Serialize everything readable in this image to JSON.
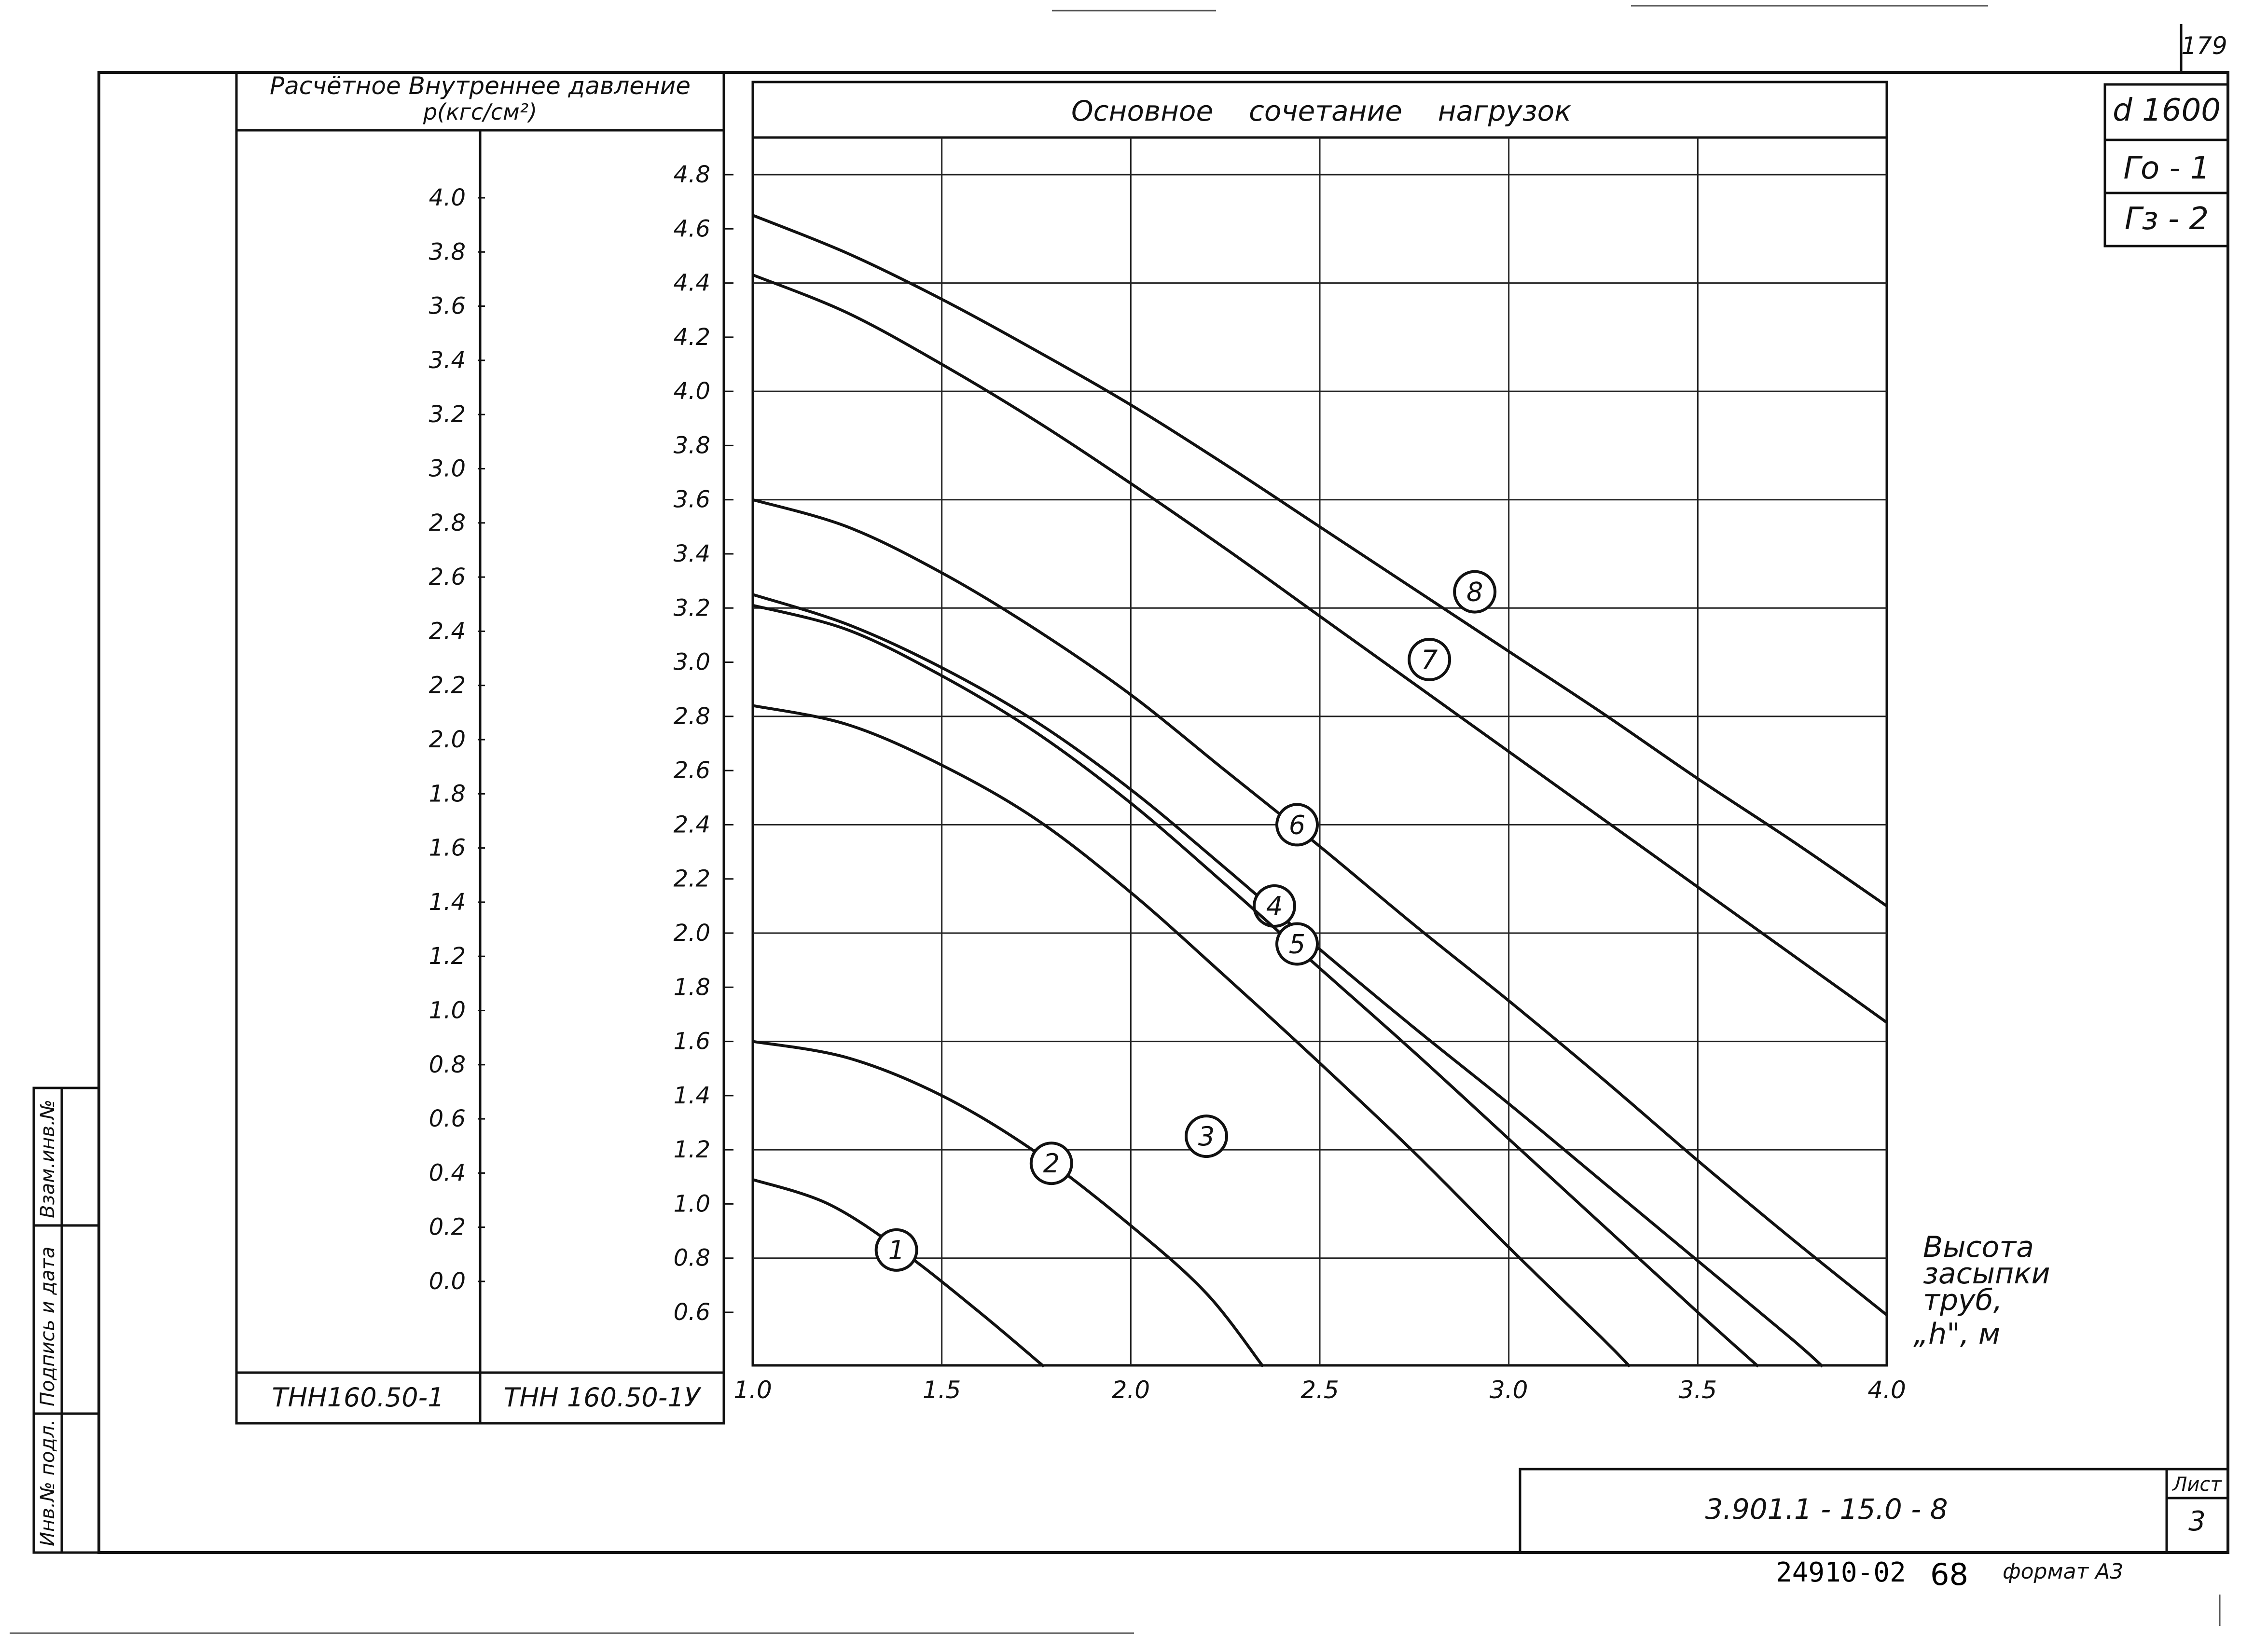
{
  "page_number": "179",
  "stamps": {
    "diameter": "d 1600",
    "g0": "Γo - 1",
    "g3": "Γз - 2"
  },
  "left_panel": {
    "header_line1": "Расчётное  Внутреннее  давление",
    "header_line2": "p(кгс/см²)",
    "col1_footer": "ТНН160.50-1",
    "col2_footer": "ТНН 160.50-1У",
    "col1_ticks": [
      "4.0",
      "3.8",
      "3.6",
      "3.4",
      "3.2",
      "3.0",
      "2.8",
      "2.6",
      "2.4",
      "2.2",
      "2.0",
      "1.8",
      "1.6",
      "1.4",
      "1.2",
      "1.0",
      "0.8",
      "0.6",
      "0.4",
      "0.2",
      "0.0"
    ],
    "col2_ticks": [
      "4.8",
      "4.6",
      "4.4",
      "4.2",
      "4.0",
      "3.8",
      "3.6",
      "3.4",
      "3.2",
      "3.0",
      "2.8",
      "2.6",
      "2.4",
      "2.2",
      "2.0",
      "1.8",
      "1.6",
      "1.4",
      "1.2",
      "1.0",
      "0.8",
      "0.6"
    ]
  },
  "side_labels": {
    "a": "Взам.инв.№",
    "b": "Подпись и дата",
    "c": "Инв.№ подл."
  },
  "title_block": {
    "doc_code": "3.901.1 - 15.0 - 8",
    "sheet_label": "Лист",
    "sheet_number": "3"
  },
  "bottom_text": {
    "code": "24910-02",
    "num": "68",
    "format": "формат A3"
  },
  "chart_data": {
    "type": "line",
    "title": "Основное    сочетание    нагрузок",
    "xlabel_lines": [
      "Высота",
      "засыпки",
      "труб,",
      "„h\", м"
    ],
    "x_ticks": [
      "1.0",
      "1.5",
      "2.0",
      "2.5",
      "3.0",
      "3.5",
      "4.0"
    ],
    "xlim": [
      1.0,
      4.0
    ],
    "ylim": [
      0.4,
      4.9
    ],
    "grid": true,
    "series": [
      {
        "name": "1",
        "label_at": [
          1.38,
          0.83
        ],
        "points": [
          [
            1.0,
            1.09
          ],
          [
            1.2,
            1.0
          ],
          [
            1.4,
            0.82
          ],
          [
            1.6,
            0.6
          ],
          [
            1.77,
            0.4
          ]
        ]
      },
      {
        "name": "2",
        "label_at": [
          1.79,
          1.15
        ],
        "points": [
          [
            1.0,
            1.6
          ],
          [
            1.25,
            1.54
          ],
          [
            1.5,
            1.4
          ],
          [
            1.75,
            1.19
          ],
          [
            2.0,
            0.92
          ],
          [
            2.2,
            0.67
          ],
          [
            2.35,
            0.4
          ]
        ]
      },
      {
        "name": "3",
        "label_at": [
          2.2,
          1.25
        ],
        "points": [
          [
            1.0,
            2.84
          ],
          [
            1.25,
            2.77
          ],
          [
            1.5,
            2.62
          ],
          [
            1.75,
            2.42
          ],
          [
            2.0,
            2.15
          ],
          [
            2.25,
            1.84
          ],
          [
            2.5,
            1.52
          ],
          [
            2.75,
            1.19
          ],
          [
            3.0,
            0.84
          ],
          [
            3.25,
            0.5
          ],
          [
            3.32,
            0.4
          ]
        ]
      },
      {
        "name": "4",
        "label_at": [
          2.38,
          2.1
        ],
        "points": [
          [
            1.0,
            3.25
          ],
          [
            1.25,
            3.14
          ],
          [
            1.5,
            2.98
          ],
          [
            1.75,
            2.78
          ],
          [
            2.0,
            2.53
          ],
          [
            2.25,
            2.24
          ],
          [
            2.5,
            1.94
          ],
          [
            2.75,
            1.65
          ],
          [
            3.0,
            1.37
          ],
          [
            3.25,
            1.08
          ],
          [
            3.5,
            0.79
          ],
          [
            3.75,
            0.5
          ],
          [
            3.83,
            0.4
          ]
        ]
      },
      {
        "name": "5",
        "label_at": [
          2.44,
          1.96
        ],
        "points": [
          [
            1.0,
            3.21
          ],
          [
            1.25,
            3.12
          ],
          [
            1.5,
            2.95
          ],
          [
            1.75,
            2.74
          ],
          [
            2.0,
            2.48
          ],
          [
            2.25,
            2.18
          ],
          [
            2.5,
            1.87
          ],
          [
            2.75,
            1.56
          ],
          [
            3.0,
            1.24
          ],
          [
            3.25,
            0.92
          ],
          [
            3.5,
            0.6
          ],
          [
            3.66,
            0.4
          ]
        ]
      },
      {
        "name": "6",
        "label_at": [
          2.44,
          2.4
        ],
        "points": [
          [
            1.0,
            3.6
          ],
          [
            1.25,
            3.5
          ],
          [
            1.5,
            3.33
          ],
          [
            1.75,
            3.12
          ],
          [
            2.0,
            2.88
          ],
          [
            2.25,
            2.6
          ],
          [
            2.5,
            2.32
          ],
          [
            2.75,
            2.03
          ],
          [
            3.0,
            1.75
          ],
          [
            3.25,
            1.46
          ],
          [
            3.5,
            1.16
          ],
          [
            3.75,
            0.87
          ],
          [
            4.0,
            0.59
          ]
        ]
      },
      {
        "name": "7",
        "label_at": [
          2.79,
          3.01
        ],
        "points": [
          [
            1.0,
            4.43
          ],
          [
            1.25,
            4.29
          ],
          [
            1.5,
            4.1
          ],
          [
            1.75,
            3.89
          ],
          [
            2.0,
            3.66
          ],
          [
            2.25,
            3.42
          ],
          [
            2.5,
            3.17
          ],
          [
            2.75,
            2.92
          ],
          [
            3.0,
            2.67
          ],
          [
            3.25,
            2.42
          ],
          [
            3.5,
            2.17
          ],
          [
            3.75,
            1.92
          ],
          [
            4.0,
            1.67
          ]
        ]
      },
      {
        "name": "8",
        "label_at": [
          2.91,
          3.26
        ],
        "points": [
          [
            1.0,
            4.65
          ],
          [
            1.25,
            4.51
          ],
          [
            1.5,
            4.34
          ],
          [
            1.75,
            4.15
          ],
          [
            2.0,
            3.95
          ],
          [
            2.25,
            3.73
          ],
          [
            2.5,
            3.5
          ],
          [
            2.75,
            3.27
          ],
          [
            3.0,
            3.04
          ],
          [
            3.25,
            2.81
          ],
          [
            3.5,
            2.57
          ],
          [
            3.75,
            2.34
          ],
          [
            4.0,
            2.1
          ]
        ]
      }
    ]
  }
}
